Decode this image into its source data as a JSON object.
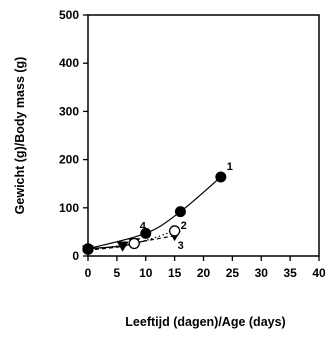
{
  "chart_data": {
    "type": "scatter",
    "xlabel": "Leeftijd (dagen)/Age (days)",
    "ylabel": "Gewicht (g)/Body mass (g)",
    "xlim": [
      0,
      40
    ],
    "ylim": [
      0,
      500
    ],
    "x_ticks": [
      0,
      5,
      10,
      15,
      20,
      25,
      30,
      35,
      40
    ],
    "y_ticks": [
      0,
      100,
      200,
      300,
      400,
      500
    ],
    "grid": false,
    "series": [
      {
        "label": "1",
        "marker": "filled-circle",
        "line": "solid",
        "points": [
          {
            "x": 0,
            "y": 15
          },
          {
            "x": 10,
            "y": 47
          },
          {
            "x": 16,
            "y": 92
          },
          {
            "x": 23,
            "y": 164
          }
        ]
      },
      {
        "label": "2",
        "marker": "open-circle",
        "line": "dotted",
        "points": [
          {
            "x": 0,
            "y": 14
          },
          {
            "x": 8,
            "y": 26
          },
          {
            "x": 15,
            "y": 52
          }
        ]
      },
      {
        "label": "3",
        "marker": "filled-triangle-down",
        "line": "dashed",
        "points": [
          {
            "x": 0,
            "y": 12
          },
          {
            "x": 6,
            "y": 20
          },
          {
            "x": 8,
            "y": 27
          },
          {
            "x": 15,
            "y": 42
          }
        ]
      },
      {
        "label": "4",
        "marker": "none",
        "line": "solid",
        "points": [
          {
            "x": 0,
            "y": 15
          },
          {
            "x": 6,
            "y": 21
          },
          {
            "x": 10,
            "y": 32
          }
        ]
      }
    ]
  }
}
